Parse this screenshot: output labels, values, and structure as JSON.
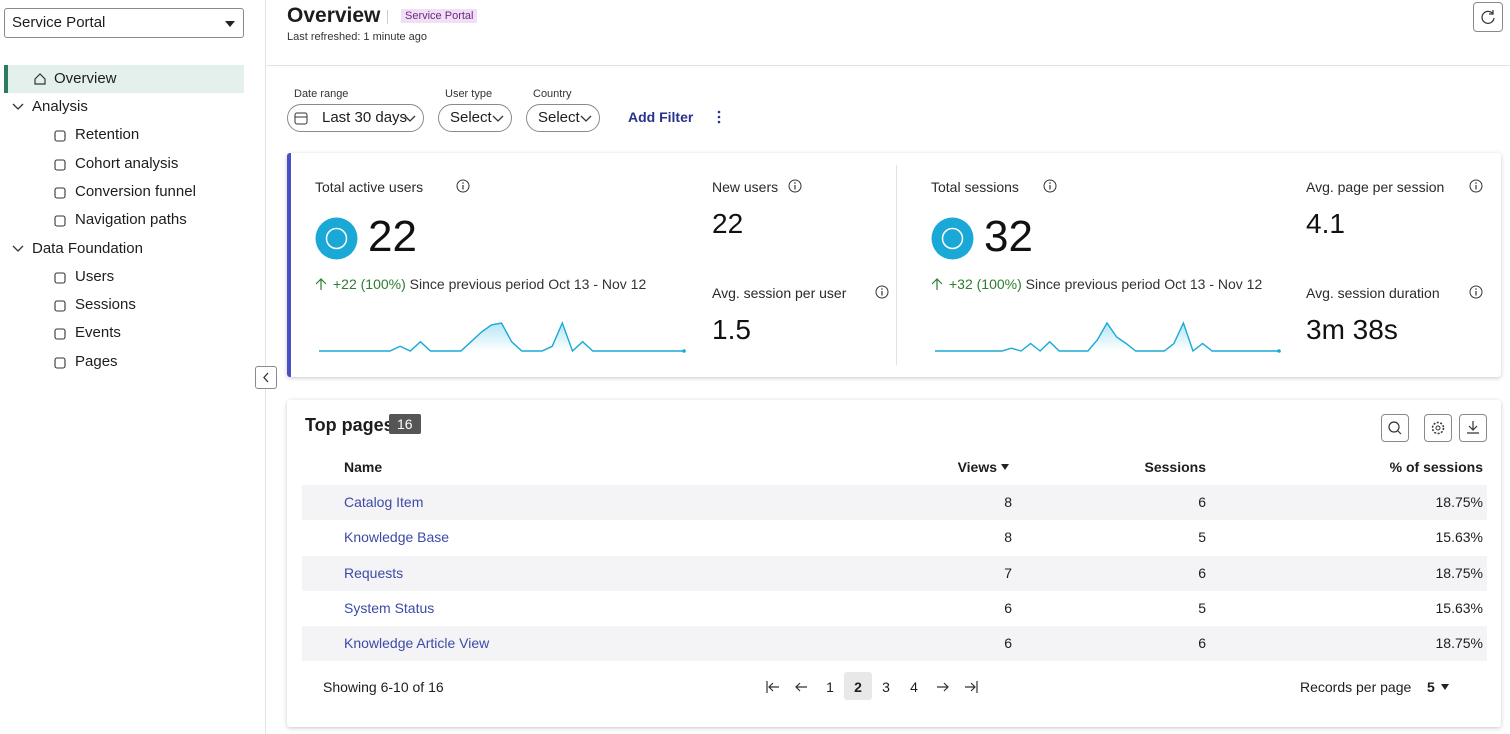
{
  "sidebar": {
    "app_select": "Service Portal",
    "nav": [
      {
        "label": "Overview"
      },
      {
        "label": "Analysis",
        "children": [
          "Retention",
          "Cohort analysis",
          "Conversion funnel",
          "Navigation paths"
        ]
      },
      {
        "label": "Data Foundation",
        "children": [
          "Users",
          "Sessions",
          "Events",
          "Pages"
        ]
      }
    ]
  },
  "header": {
    "title": "Overview",
    "badge": "Service Portal",
    "refreshed": "Last refreshed: 1 minute ago"
  },
  "filters": [
    {
      "label": "Date range",
      "value": "Last 30 days"
    },
    {
      "label": "User type",
      "value": "Select"
    },
    {
      "label": "Country",
      "value": "Select"
    }
  ],
  "add_filter": "Add Filter",
  "kpis": [
    {
      "label": "Total active users",
      "value": 22,
      "change": "+22 (100%)",
      "since": "Since previous period Oct 13 - Nov 12",
      "sparkline": [
        0,
        0,
        0,
        0,
        0,
        0,
        0,
        0,
        0.5,
        0,
        1,
        0,
        0,
        0,
        0,
        1,
        2,
        2.8,
        3,
        1,
        0,
        0,
        0,
        0.5,
        3,
        0,
        1,
        0,
        0,
        0,
        0,
        0,
        0,
        0,
        0,
        0,
        0
      ]
    },
    {
      "label": "New users",
      "value": 22
    },
    {
      "label": "Avg. session per user",
      "value": 1.5
    },
    {
      "label": "Total sessions",
      "value": 32,
      "change": "+32 (100%)",
      "since": "Since previous period Oct 13 - Nov 12",
      "sparkline": [
        0,
        0,
        0,
        0,
        0,
        0,
        0,
        0,
        0.3,
        0,
        0.8,
        0,
        1,
        0,
        0,
        0,
        0,
        1.2,
        3,
        1.5,
        0.8,
        0,
        0,
        0,
        0,
        0.8,
        3,
        0,
        0.8,
        0,
        0,
        0,
        0,
        0,
        0,
        0,
        0
      ]
    },
    {
      "label": "Avg. page per session",
      "value": 4.1
    },
    {
      "label": "Avg. session duration",
      "value": "3m 38s"
    }
  ],
  "table": {
    "title": "Top pages",
    "count": 16,
    "columns": [
      "Name",
      "Views",
      "Sessions",
      "% of sessions"
    ],
    "rows": [
      [
        "Catalog Item",
        8,
        6,
        "18.75%"
      ],
      [
        "Knowledge Base",
        8,
        5,
        "15.63%"
      ],
      [
        "Requests",
        7,
        6,
        "18.75%"
      ],
      [
        "System Status",
        6,
        5,
        "15.63%"
      ],
      [
        "Knowledge Article View",
        6,
        6,
        "18.75%"
      ]
    ],
    "showing": "Showing 6-10 of 16",
    "pages": [
      1,
      2,
      3,
      4
    ],
    "records_label": "Records per page",
    "records_value": 5
  }
}
